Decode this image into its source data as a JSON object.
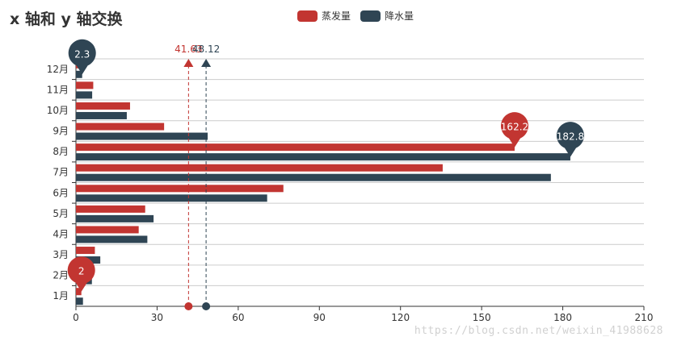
{
  "chart_data": {
    "type": "bar",
    "orientation": "horizontal",
    "title": "x 轴和 y 轴交换",
    "categories": [
      "1月",
      "2月",
      "3月",
      "4月",
      "5月",
      "6月",
      "7月",
      "8月",
      "9月",
      "10月",
      "11月",
      "12月"
    ],
    "series": [
      {
        "name": "蒸发量",
        "color": "#c23531",
        "values": [
          2.0,
          4.9,
          7.0,
          23.2,
          25.6,
          76.7,
          135.6,
          162.2,
          32.6,
          20.0,
          6.4,
          3.3
        ],
        "max_pin": {
          "category": "8月",
          "label": "162.2"
        },
        "min_pin": {
          "category": "1月",
          "label": "2"
        },
        "average": {
          "value": 41.63,
          "label": "41.63"
        }
      },
      {
        "name": "降水量",
        "color": "#2f4554",
        "values": [
          2.6,
          5.9,
          9.0,
          26.4,
          28.7,
          70.7,
          175.6,
          182.8,
          48.7,
          18.8,
          6.0,
          2.3
        ],
        "max_pin": {
          "category": "8月",
          "label": "182.8"
        },
        "min_pin": {
          "category": "12月",
          "label": "2.3"
        },
        "average": {
          "value": 48.12,
          "label": "48.12"
        }
      }
    ],
    "x_axis": {
      "min": 0,
      "max": 210,
      "ticks": [
        0,
        30,
        60,
        90,
        120,
        150,
        180,
        210
      ]
    },
    "grid": true,
    "legend_position": "top-center"
  },
  "watermark": "https://blog.csdn.net/weixin_41988628"
}
